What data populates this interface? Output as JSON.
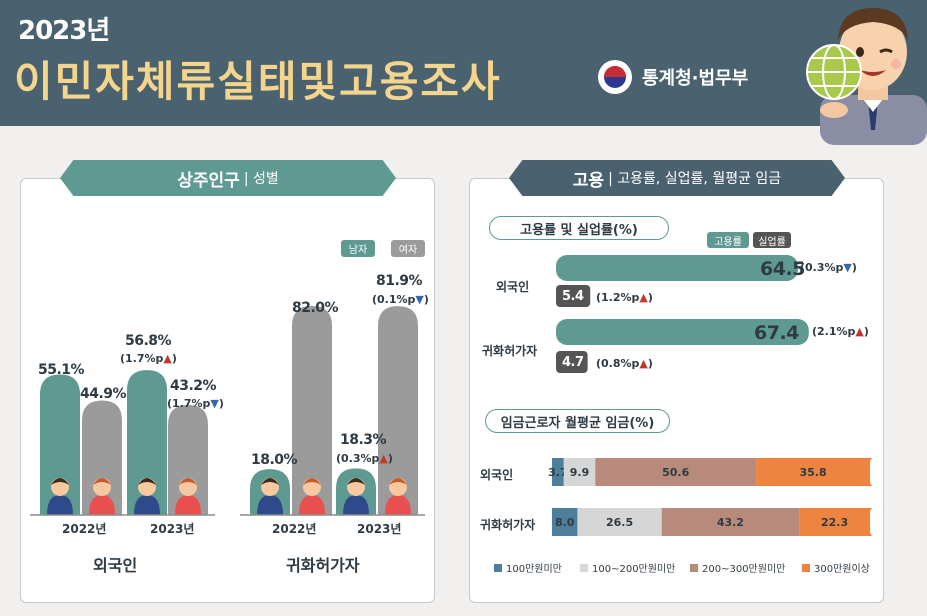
{
  "header": {
    "year": "2023년",
    "title": "이민자체류실태및고용조사",
    "agency": "통계청·법무부"
  },
  "left_panel": {
    "tab_title": "상주인구",
    "tab_subtitle": "| 성별",
    "legend": {
      "male": "남자",
      "female": "여자"
    },
    "groups": [
      "외국인",
      "귀화허가자"
    ],
    "years": [
      "2022년",
      "2023년",
      "2022년",
      "2023년"
    ],
    "labels": {
      "fg22_m": "55.1%",
      "fg22_f": "44.9%",
      "fg23_m": "56.8%",
      "fg23_m_chg": "(1.7%p",
      "fg23_f": "43.2%",
      "fg23_f_chg": "(1.7%p",
      "nt22_m": "18.0%",
      "nt22_f": "82.0%",
      "nt23_m": "18.3%",
      "nt23_m_chg": "(0.3%p",
      "nt23_f": "81.9%",
      "nt23_f_chg": "(0.1%p"
    }
  },
  "right_panel": {
    "tab_title": "고용",
    "tab_subtitle": "| 고용률, 실업률, 월평균 임금",
    "section1_title": "고용률 및 실업률(%)",
    "legend": {
      "employment": "고용률",
      "unemployment": "실업률"
    },
    "rows": [
      "외국인",
      "귀화허가자"
    ],
    "values": {
      "fg_emp": "64.5",
      "fg_emp_chg": "(0.3%p",
      "fg_unemp": "5.4",
      "fg_unemp_chg": "(1.2%p",
      "nt_emp": "67.4",
      "nt_emp_chg": "(2.1%p",
      "nt_unemp": "4.7",
      "nt_unemp_chg": "(0.8%p"
    },
    "section2_title": "임금근로자 월평균 임금(%)",
    "wage_legend": [
      "100만원미만",
      "100~200만원미만",
      "200~300만원미만",
      "300만원이상"
    ]
  },
  "chart_data": [
    {
      "type": "bar",
      "title": "상주인구 | 성별",
      "categories": [
        "외국인 2022년",
        "외국인 2023년",
        "귀화허가자 2022년",
        "귀화허가자 2023년"
      ],
      "series": [
        {
          "name": "남자",
          "values": [
            55.1,
            56.8,
            18.0,
            18.3
          ]
        },
        {
          "name": "여자",
          "values": [
            44.9,
            43.2,
            82.0,
            81.9
          ]
        }
      ],
      "ylim": [
        0,
        100
      ]
    },
    {
      "type": "bar",
      "title": "고용률 및 실업률(%)",
      "categories": [
        "외국인",
        "귀화허가자"
      ],
      "series": [
        {
          "name": "고용률",
          "values": [
            64.5,
            67.4
          ]
        },
        {
          "name": "실업률",
          "values": [
            5.4,
            4.7
          ]
        }
      ]
    },
    {
      "type": "bar",
      "title": "임금근로자 월평균 임금(%)",
      "categories": [
        "외국인",
        "귀화허가자"
      ],
      "series": [
        {
          "name": "100만원미만",
          "values": [
            3.7,
            8.0
          ]
        },
        {
          "name": "100~200만원미만",
          "values": [
            9.9,
            26.5
          ]
        },
        {
          "name": "200~300만원미만",
          "values": [
            50.6,
            43.2
          ]
        },
        {
          "name": "300만원이상",
          "values": [
            35.8,
            22.3
          ]
        }
      ]
    }
  ],
  "colors": {
    "teal": "#5e9a92",
    "gray": "#9b9b9b",
    "dark": "#555555",
    "wage": [
      "#4d7f9b",
      "#d6d6d6",
      "#b88a7b",
      "#ef8340"
    ],
    "arrow_up": "#c0392b",
    "arrow_down": "#3566b0"
  }
}
